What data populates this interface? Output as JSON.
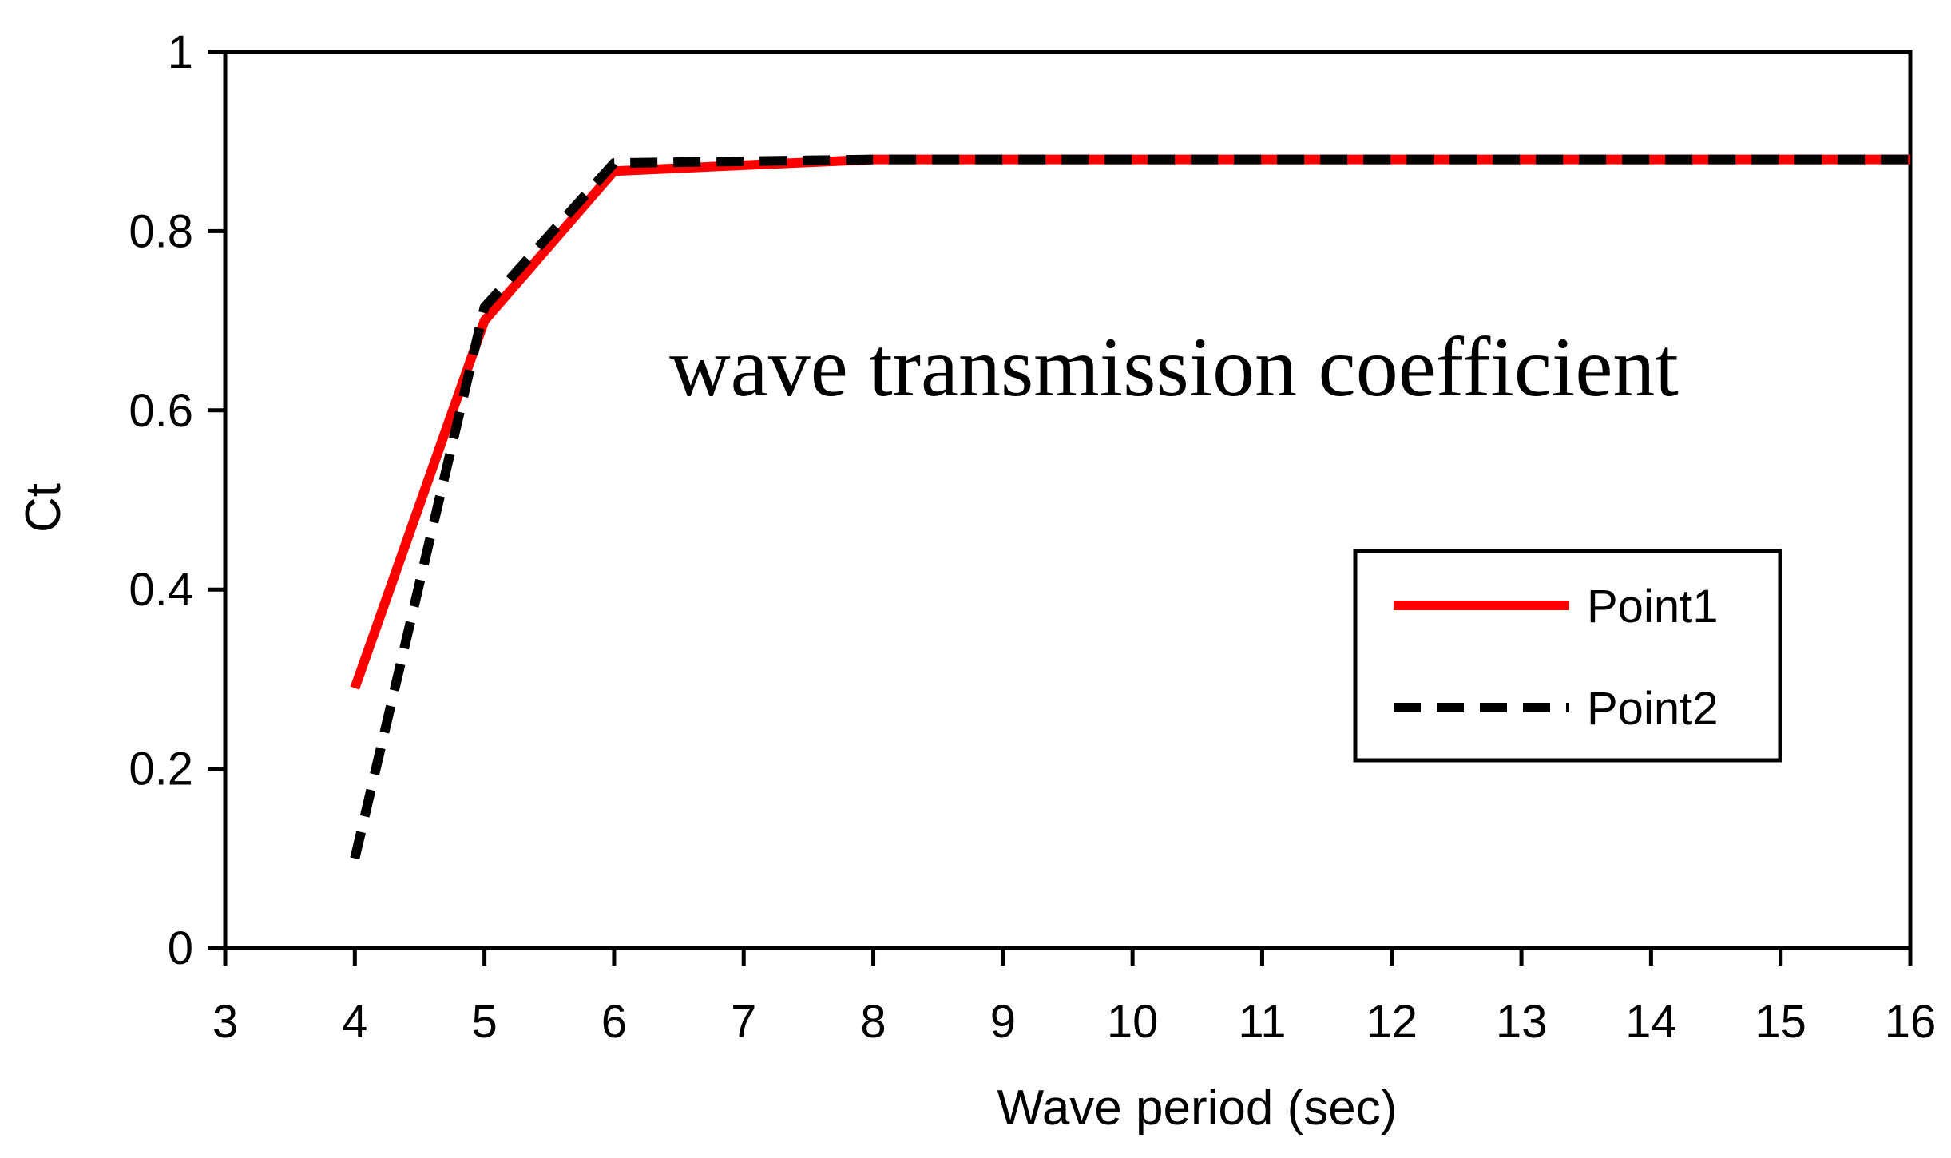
{
  "chart_data": {
    "type": "line",
    "title": "",
    "annotation": "wave transmission coefficient",
    "xlabel": "Wave period (sec)",
    "ylabel": "Ct",
    "xlim": [
      3,
      16
    ],
    "ylim": [
      0,
      1
    ],
    "x_ticks": [
      3,
      4,
      5,
      6,
      7,
      8,
      9,
      10,
      11,
      12,
      13,
      14,
      15,
      16
    ],
    "y_ticks": [
      0,
      0.2,
      0.4,
      0.6,
      0.8,
      1
    ],
    "y_tick_labels": [
      "0",
      "0.2",
      "0.4",
      "0.6",
      "0.8",
      "1"
    ],
    "x_positions": [
      3,
      4,
      5,
      6,
      7,
      8,
      9,
      10,
      11,
      12,
      13,
      14,
      15,
      16
    ],
    "x_tick_labels": [
      "3",
      "4",
      "5",
      "6",
      "7",
      "8",
      "9",
      "10",
      "11",
      "12",
      "13",
      "14",
      "15",
      "16"
    ],
    "legend_position": "right",
    "series": [
      {
        "name": "Point1",
        "color": "#ff0000",
        "style": "solid",
        "x": [
          4,
          5,
          6,
          8,
          16
        ],
        "values": [
          0.29,
          0.7,
          0.867,
          0.88,
          0.88
        ]
      },
      {
        "name": "Point2",
        "color": "#000000",
        "style": "dashed",
        "x": [
          4,
          5,
          6,
          8,
          16
        ],
        "values": [
          0.1,
          0.715,
          0.876,
          0.88,
          0.88
        ]
      }
    ]
  }
}
